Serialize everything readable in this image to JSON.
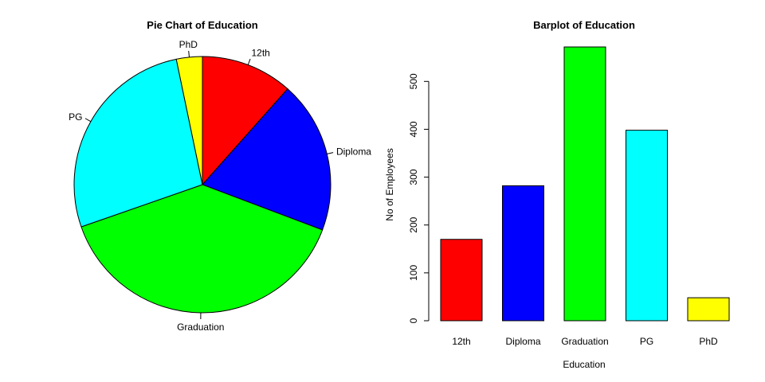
{
  "chart_data": [
    {
      "type": "pie",
      "title": "Pie Chart of Education",
      "categories": [
        "12th",
        "Diploma",
        "Graduation",
        "PG",
        "PhD"
      ],
      "values": [
        170,
        282,
        572,
        398,
        48
      ],
      "colors": [
        "#ff0000",
        "#0000ff",
        "#00ff00",
        "#00ffff",
        "#ffff00"
      ],
      "direction": "counterclockwise",
      "start": "top"
    },
    {
      "type": "bar",
      "title": "Barplot of Education",
      "categories": [
        "12th",
        "Diploma",
        "Graduation",
        "PG",
        "PhD"
      ],
      "values": [
        170,
        282,
        572,
        398,
        48
      ],
      "colors": [
        "#ff0000",
        "#0000ff",
        "#00ff00",
        "#00ffff",
        "#ffff00"
      ],
      "xlabel": "Education",
      "ylabel": "No of Employees",
      "yticks": [
        0,
        100,
        200,
        300,
        400,
        500
      ],
      "ylim": [
        0,
        572
      ]
    }
  ]
}
